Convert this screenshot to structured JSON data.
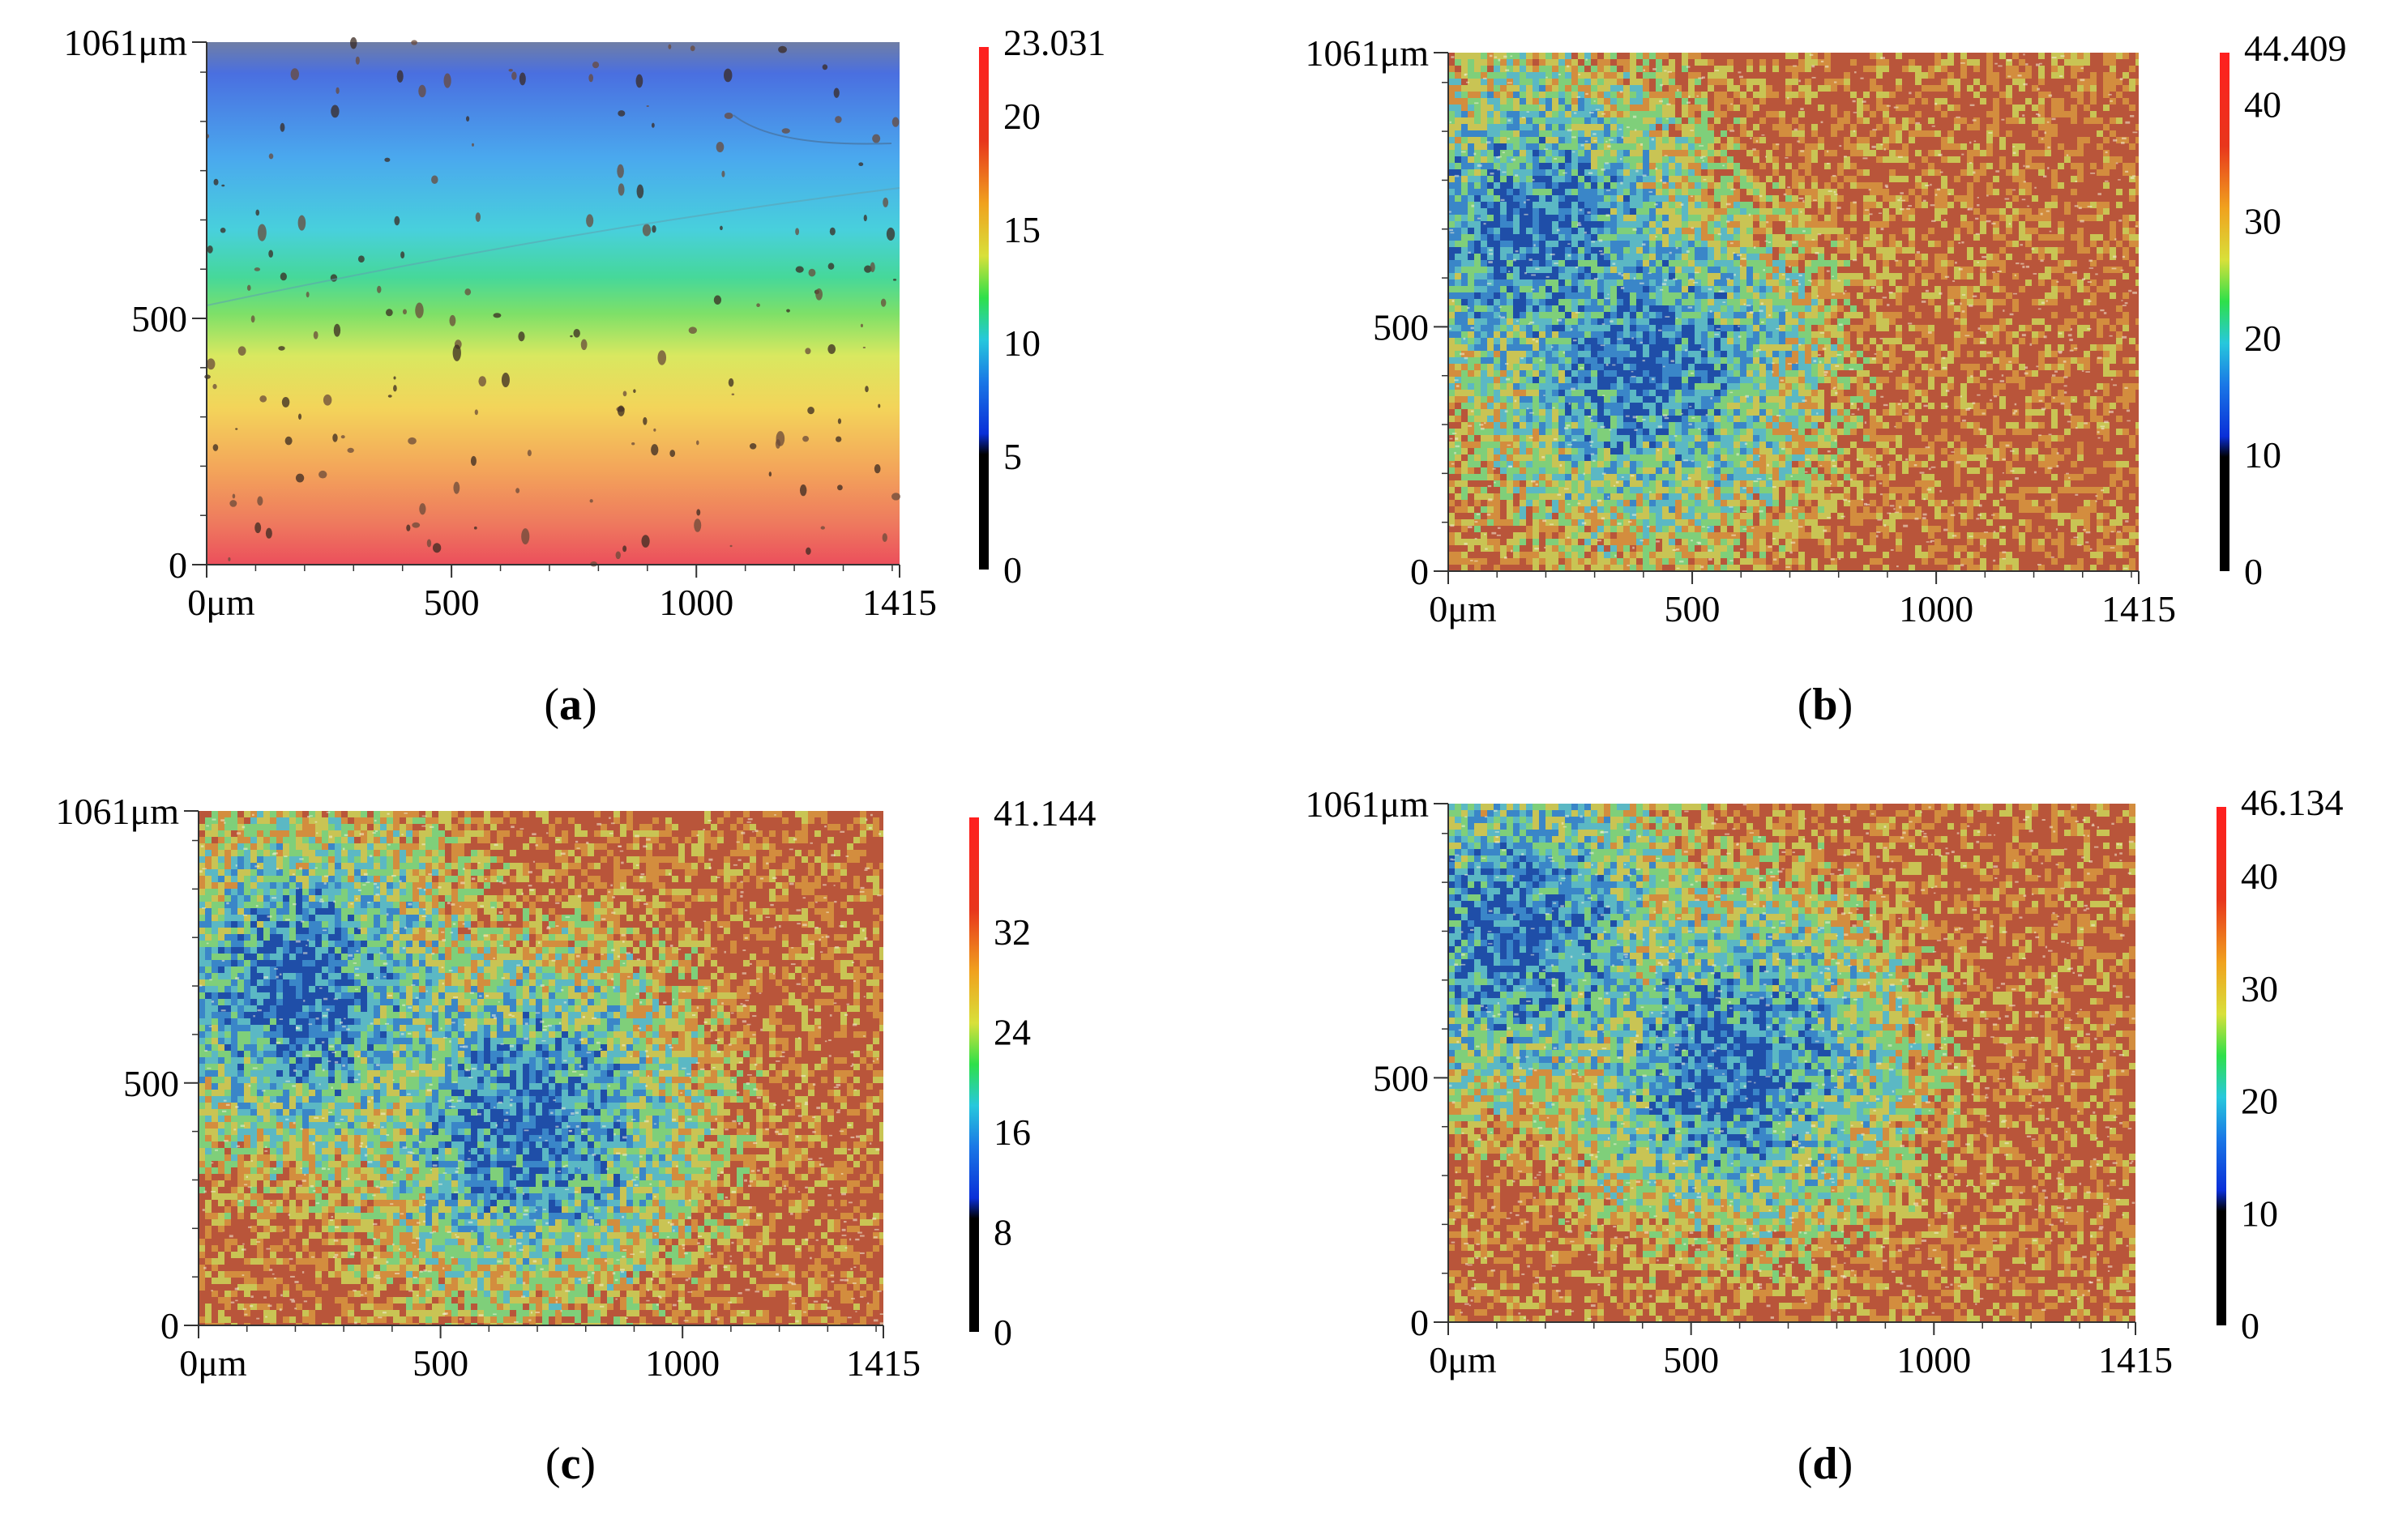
{
  "figure": {
    "colors": {
      "axis": "#333333",
      "colormap": [
        "#000000",
        "#0a2fd8",
        "#1a78e6",
        "#27c8dc",
        "#2ee04a",
        "#d8e03a",
        "#f0a21e",
        "#e8361c",
        "#ff1f1f"
      ],
      "noise_palette": [
        "#1f4ea8",
        "#3a86c8",
        "#5bb8c4",
        "#7fcf7a",
        "#c9c454",
        "#d38d3e",
        "#b9553a"
      ]
    }
  },
  "chart_data": [
    {
      "type": "heatmap",
      "panel": "a",
      "caption_letter": "a",
      "caption_open": "(",
      "caption_close": ")",
      "title": "",
      "xlabel": "",
      "ylabel": "",
      "x_range": [
        0,
        1415
      ],
      "y_range": [
        0,
        1061
      ],
      "x_tick_values": [
        0,
        500,
        1000,
        1415
      ],
      "x_tick_labels": [
        "0μm",
        "500",
        "1000",
        "1415"
      ],
      "y_tick_values": [
        0,
        500,
        1061
      ],
      "y_tick_labels": [
        "0",
        "500",
        "1061μm"
      ],
      "colorbar": {
        "min": 0,
        "max": 23.031,
        "tick_values": [
          0,
          5,
          10,
          15,
          20,
          23.031
        ],
        "tick_labels": [
          "0",
          "5",
          "10",
          "15",
          "20",
          "23.031"
        ]
      },
      "pattern": "gradient",
      "description_values": {
        "top_height": 7,
        "bottom_height": 21
      }
    },
    {
      "type": "heatmap",
      "panel": "b",
      "caption_letter": "b",
      "caption_open": "(",
      "caption_close": ")",
      "title": "",
      "xlabel": "",
      "ylabel": "",
      "x_range": [
        0,
        1415
      ],
      "y_range": [
        0,
        1061
      ],
      "x_tick_values": [
        0,
        500,
        1000,
        1415
      ],
      "x_tick_labels": [
        "0μm",
        "500",
        "1000",
        "1415"
      ],
      "y_tick_values": [
        0,
        500,
        1061
      ],
      "y_tick_labels": [
        "0",
        "500",
        "1061μm"
      ],
      "colorbar": {
        "min": 0,
        "max": 44.409,
        "tick_values": [
          0,
          10,
          20,
          30,
          40,
          44.409
        ],
        "tick_labels": [
          "0",
          "10",
          "20",
          "30",
          "40",
          "44.409"
        ]
      },
      "pattern": "rough"
    },
    {
      "type": "heatmap",
      "panel": "c",
      "caption_letter": "c",
      "caption_open": "(",
      "caption_close": ")",
      "title": "",
      "xlabel": "",
      "ylabel": "",
      "x_range": [
        0,
        1415
      ],
      "y_range": [
        0,
        1061
      ],
      "x_tick_values": [
        0,
        500,
        1000,
        1415
      ],
      "x_tick_labels": [
        "0μm",
        "500",
        "1000",
        "1415"
      ],
      "y_tick_values": [
        0,
        500,
        1061
      ],
      "y_tick_labels": [
        "0",
        "500",
        "1061μm"
      ],
      "colorbar": {
        "min": 0,
        "max": 41.144,
        "tick_values": [
          0,
          8,
          16,
          24,
          32,
          41.144
        ],
        "tick_labels": [
          "0",
          "8",
          "16",
          "24",
          "32",
          "41.144"
        ]
      },
      "pattern": "rough"
    },
    {
      "type": "heatmap",
      "panel": "d",
      "caption_letter": "d",
      "caption_open": "(",
      "caption_close": ")",
      "title": "",
      "xlabel": "",
      "ylabel": "",
      "x_range": [
        0,
        1415
      ],
      "y_range": [
        0,
        1061
      ],
      "x_tick_values": [
        0,
        500,
        1000,
        1415
      ],
      "x_tick_labels": [
        "0μm",
        "500",
        "1000",
        "1415"
      ],
      "y_tick_values": [
        0,
        500,
        1061
      ],
      "y_tick_labels": [
        "0",
        "500",
        "1061μm"
      ],
      "colorbar": {
        "min": 0,
        "max": 46.134,
        "tick_values": [
          0,
          10,
          20,
          30,
          40,
          46.134
        ],
        "tick_labels": [
          "0",
          "10",
          "20",
          "30",
          "40",
          "46.134"
        ]
      },
      "pattern": "rough"
    }
  ]
}
